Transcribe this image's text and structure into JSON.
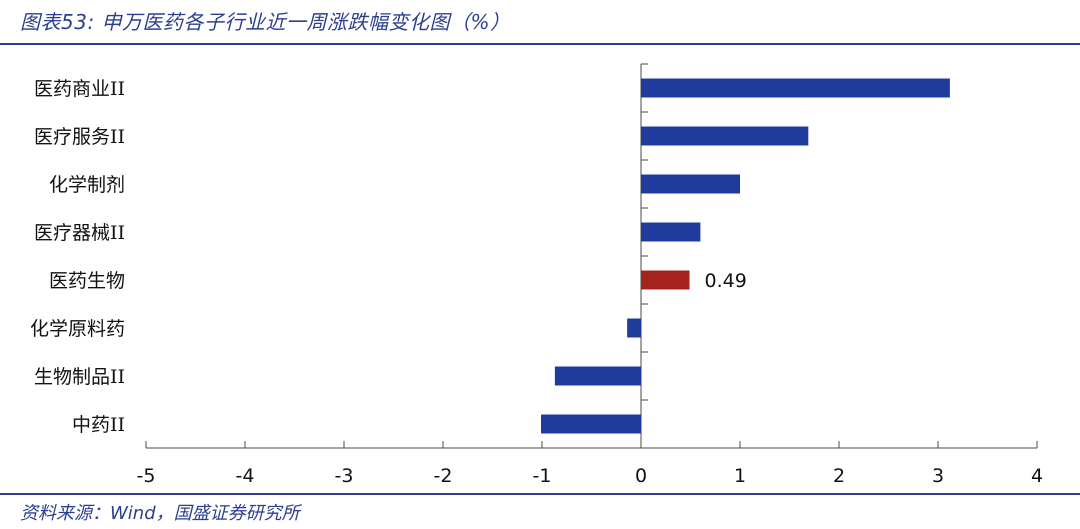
{
  "header": {
    "title": "图表53:  申万医药各子行业近一周涨跌幅变化图（%）"
  },
  "footer": {
    "source": "资料来源：Wind，国盛证券研究所"
  },
  "colors": {
    "primary_bar": "#1f3c9c",
    "highlight_bar": "#a4231c",
    "axis": "#4a4a4a",
    "rule": "#2a3f8f"
  },
  "chart_data": {
    "type": "bar",
    "orientation": "horizontal",
    "categories": [
      "医药商业II",
      "医疗服务II",
      "化学制剂",
      "医疗器械II",
      "医药生物",
      "化学原料药",
      "生物制品II",
      "中药II"
    ],
    "values": [
      3.12,
      1.69,
      1.0,
      0.6,
      0.49,
      -0.14,
      -0.87,
      -1.01
    ],
    "highlight_index": 4,
    "data_labels": [
      {
        "category": "医药生物",
        "text": "0.49"
      }
    ],
    "xlim": [
      -5,
      4
    ],
    "xticks": [
      "-5",
      "-4",
      "-3",
      "-2",
      "-1",
      "0",
      "1",
      "2",
      "3",
      "4"
    ],
    "grid": false,
    "legend": "none"
  }
}
